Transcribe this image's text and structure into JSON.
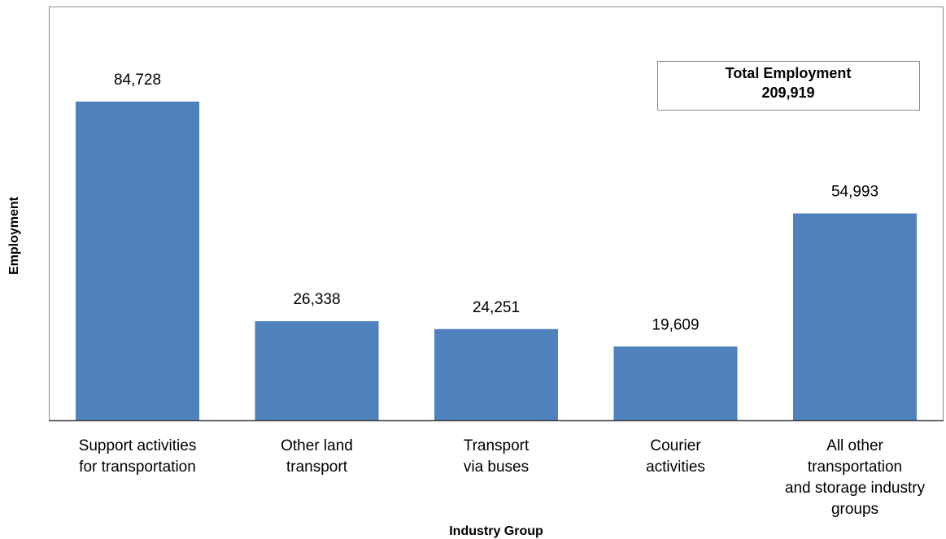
{
  "chart_data": {
    "type": "bar",
    "x_label": "Industry Group",
    "y_label": "Employment",
    "annotation": [
      "Total Employment",
      "209,919"
    ],
    "categories": [
      [
        "Support activities",
        "for transportation"
      ],
      [
        "Other land",
        "transport"
      ],
      [
        "Transport",
        "via buses"
      ],
      [
        "Courier",
        "activities"
      ],
      [
        "All other",
        "transportation",
        "and storage industry",
        "groups"
      ]
    ],
    "values": [
      84728,
      26338,
      24251,
      19609,
      54993
    ],
    "value_labels": [
      "84,728",
      "26,338",
      "24,251",
      "19,609",
      "54,993"
    ],
    "color": "#4f81bd",
    "ylim": [
      0,
      110000
    ]
  }
}
